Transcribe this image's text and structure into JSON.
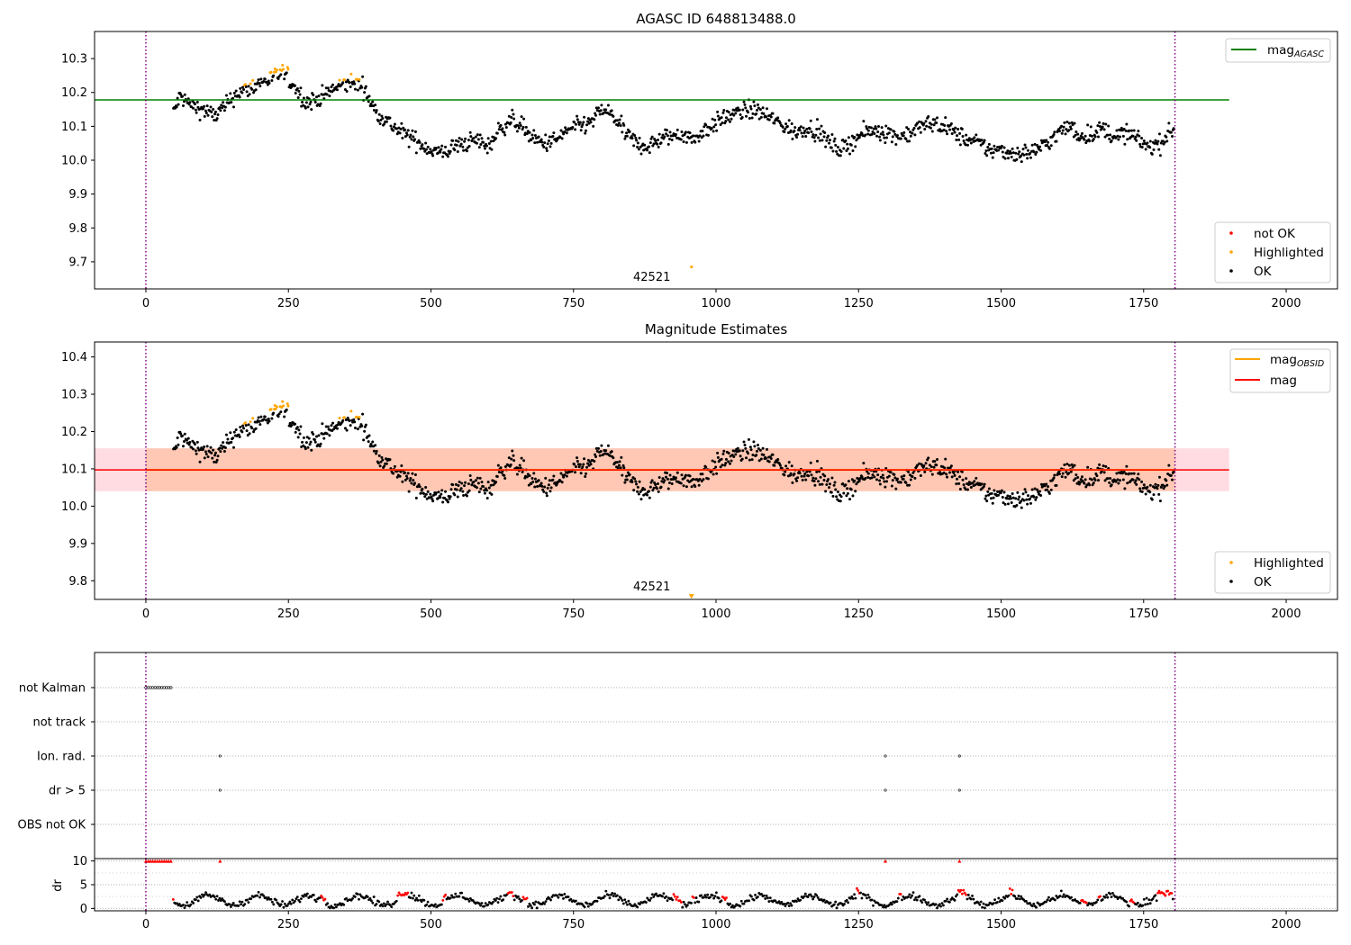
{
  "chart_data": [
    {
      "type": "scatter",
      "title": "AGASC ID 648813488.0",
      "xlim": [
        -90,
        2090
      ],
      "ylim": [
        9.62,
        10.38
      ],
      "xticks": [
        "0",
        "250",
        "500",
        "750",
        "1000",
        "1250",
        "1500",
        "1750",
        "2000"
      ],
      "yticks": [
        "9.7",
        "9.8",
        "9.9",
        "10.0",
        "10.1",
        "10.2",
        "10.3"
      ],
      "vlines": [
        0,
        1805
      ],
      "hline": {
        "label": "mag",
        "label_sub": "AGASC",
        "value": 10.178,
        "x_range": [
          -90,
          1900
        ],
        "color": "#008000"
      },
      "legend_top": [
        {
          "label": "mag",
          "sub": "AGASC",
          "color": "#008000",
          "kind": "line"
        }
      ],
      "legend_bottom": [
        {
          "label": "not OK",
          "color": "#ff0000",
          "kind": "dot"
        },
        {
          "label": "Highlighted",
          "color": "#ffa500",
          "kind": "dot"
        },
        {
          "label": "OK",
          "color": "#000000",
          "kind": "dot"
        }
      ],
      "annotation": {
        "text": "42521",
        "x": 900,
        "y": 9.655
      },
      "outlier": {
        "x": 957,
        "y": 9.685,
        "color": "#ffa500"
      },
      "series_profile": {
        "name": "OK",
        "x": [
          48,
          60,
          80,
          100,
          120,
          140,
          160,
          180,
          200,
          220,
          240,
          260,
          280,
          300,
          320,
          340,
          360,
          380,
          400,
          420,
          440,
          460,
          480,
          500,
          520,
          540,
          560,
          580,
          600,
          620,
          640,
          660,
          680,
          700,
          720,
          740,
          760,
          780,
          800,
          820,
          840,
          860,
          880,
          900,
          920,
          940,
          960,
          980,
          1000,
          1020,
          1040,
          1060,
          1080,
          1100,
          1120,
          1140,
          1160,
          1180,
          1200,
          1220,
          1240,
          1260,
          1280,
          1300,
          1320,
          1340,
          1360,
          1380,
          1400,
          1420,
          1440,
          1460,
          1480,
          1500,
          1520,
          1540,
          1560,
          1580,
          1600,
          1620,
          1640,
          1660,
          1680,
          1700,
          1720,
          1740,
          1760,
          1780,
          1800
        ],
        "y": [
          10.14,
          10.19,
          10.16,
          10.15,
          10.13,
          10.16,
          10.2,
          10.21,
          10.23,
          10.24,
          10.26,
          10.22,
          10.17,
          10.18,
          10.2,
          10.22,
          10.23,
          10.22,
          10.15,
          10.12,
          10.09,
          10.07,
          10.05,
          10.03,
          10.02,
          10.04,
          10.05,
          10.06,
          10.04,
          10.09,
          10.12,
          10.1,
          10.06,
          10.05,
          10.06,
          10.09,
          10.1,
          10.11,
          10.15,
          10.13,
          10.08,
          10.05,
          10.04,
          10.06,
          10.07,
          10.08,
          10.06,
          10.09,
          10.11,
          10.13,
          10.14,
          10.15,
          10.14,
          10.12,
          10.1,
          10.08,
          10.1,
          10.08,
          10.05,
          10.03,
          10.06,
          10.08,
          10.09,
          10.08,
          10.07,
          10.08,
          10.1,
          10.11,
          10.1,
          10.08,
          10.06,
          10.05,
          10.03,
          10.03,
          10.02,
          10.02,
          10.03,
          10.05,
          10.08,
          10.1,
          10.07,
          10.08,
          10.09,
          10.07,
          10.08,
          10.06,
          10.04,
          10.05,
          10.09
        ]
      },
      "highlighted_x_ranges": [
        [
          150,
          175
        ],
        [
          175,
          260
        ],
        [
          330,
          375
        ]
      ]
    },
    {
      "type": "scatter",
      "title": "Magnitude Estimates",
      "xlim": [
        -90,
        2090
      ],
      "ylim": [
        9.75,
        10.44
      ],
      "xticks": [
        "0",
        "250",
        "500",
        "750",
        "1000",
        "1250",
        "1500",
        "1750",
        "2000"
      ],
      "yticks": [
        "9.8",
        "9.9",
        "10.0",
        "10.1",
        "10.2",
        "10.3",
        "10.4"
      ],
      "vlines": [
        0,
        1805
      ],
      "mag_line": {
        "value": 10.097,
        "x_range": [
          -90,
          1900
        ],
        "color": "#ff0000"
      },
      "mag_band": {
        "lower": 10.04,
        "upper": 10.155,
        "color_outer": "#ffc0cb",
        "color_inner": "#ffb07c"
      },
      "obsid_band_x_range": [
        0,
        1805
      ],
      "legend_top": [
        {
          "label": "mag",
          "sub": "OBSID",
          "color": "#ffa500",
          "kind": "line"
        },
        {
          "label": "mag",
          "sub": "",
          "color": "#ff0000",
          "kind": "line"
        }
      ],
      "legend_bottom": [
        {
          "label": "Highlighted",
          "color": "#ffa500",
          "kind": "dot"
        },
        {
          "label": "OK",
          "color": "#000000",
          "kind": "dot"
        }
      ],
      "annotation": {
        "text": "42521",
        "x": 900,
        "y": 9.765
      },
      "outlier_marker": {
        "x": 957,
        "y": 9.757,
        "color": "#ffa500"
      }
    },
    {
      "type": "scatter",
      "title": "",
      "xlim": [
        -90,
        2090
      ],
      "xticks": [
        "0",
        "250",
        "500",
        "750",
        "1000",
        "1250",
        "1500",
        "1750",
        "2000"
      ],
      "flag_labels": [
        "not Kalman",
        "not track",
        "Ion. rad.",
        "dr > 5",
        "OBS not OK"
      ],
      "flags": {
        "not Kalman": {
          "x_range": [
            0,
            44
          ]
        },
        "not track": {
          "x_range": []
        },
        "Ion. rad.": {
          "x": [
            130,
            1297,
            1427
          ]
        },
        "dr > 5": {
          "x": [
            130,
            1297,
            1427
          ]
        },
        "OBS not OK": {
          "x_range": []
        }
      },
      "dr": {
        "ylabel": "dr",
        "yticks": [
          "0",
          "5",
          "10"
        ],
        "ylim": [
          -0.5,
          10.5
        ],
        "cap_x": [
          0,
          4,
          8,
          12,
          16,
          20,
          24,
          28,
          32,
          36,
          40,
          44,
          130,
          1297,
          1427
        ],
        "cap_value": 10,
        "red_x_ranges": [
          [
            45,
            50
          ],
          [
            306,
            316
          ],
          [
            440,
            460
          ],
          [
            520,
            527
          ],
          [
            635,
            645
          ],
          [
            660,
            670
          ],
          [
            925,
            940
          ],
          [
            957,
            963
          ],
          [
            1010,
            1020
          ],
          [
            1245,
            1252
          ],
          [
            1320,
            1326
          ],
          [
            1425,
            1440
          ],
          [
            1515,
            1522
          ],
          [
            1640,
            1650
          ],
          [
            1670,
            1676
          ],
          [
            1725,
            1735
          ],
          [
            1775,
            1800
          ]
        ]
      }
    }
  ]
}
